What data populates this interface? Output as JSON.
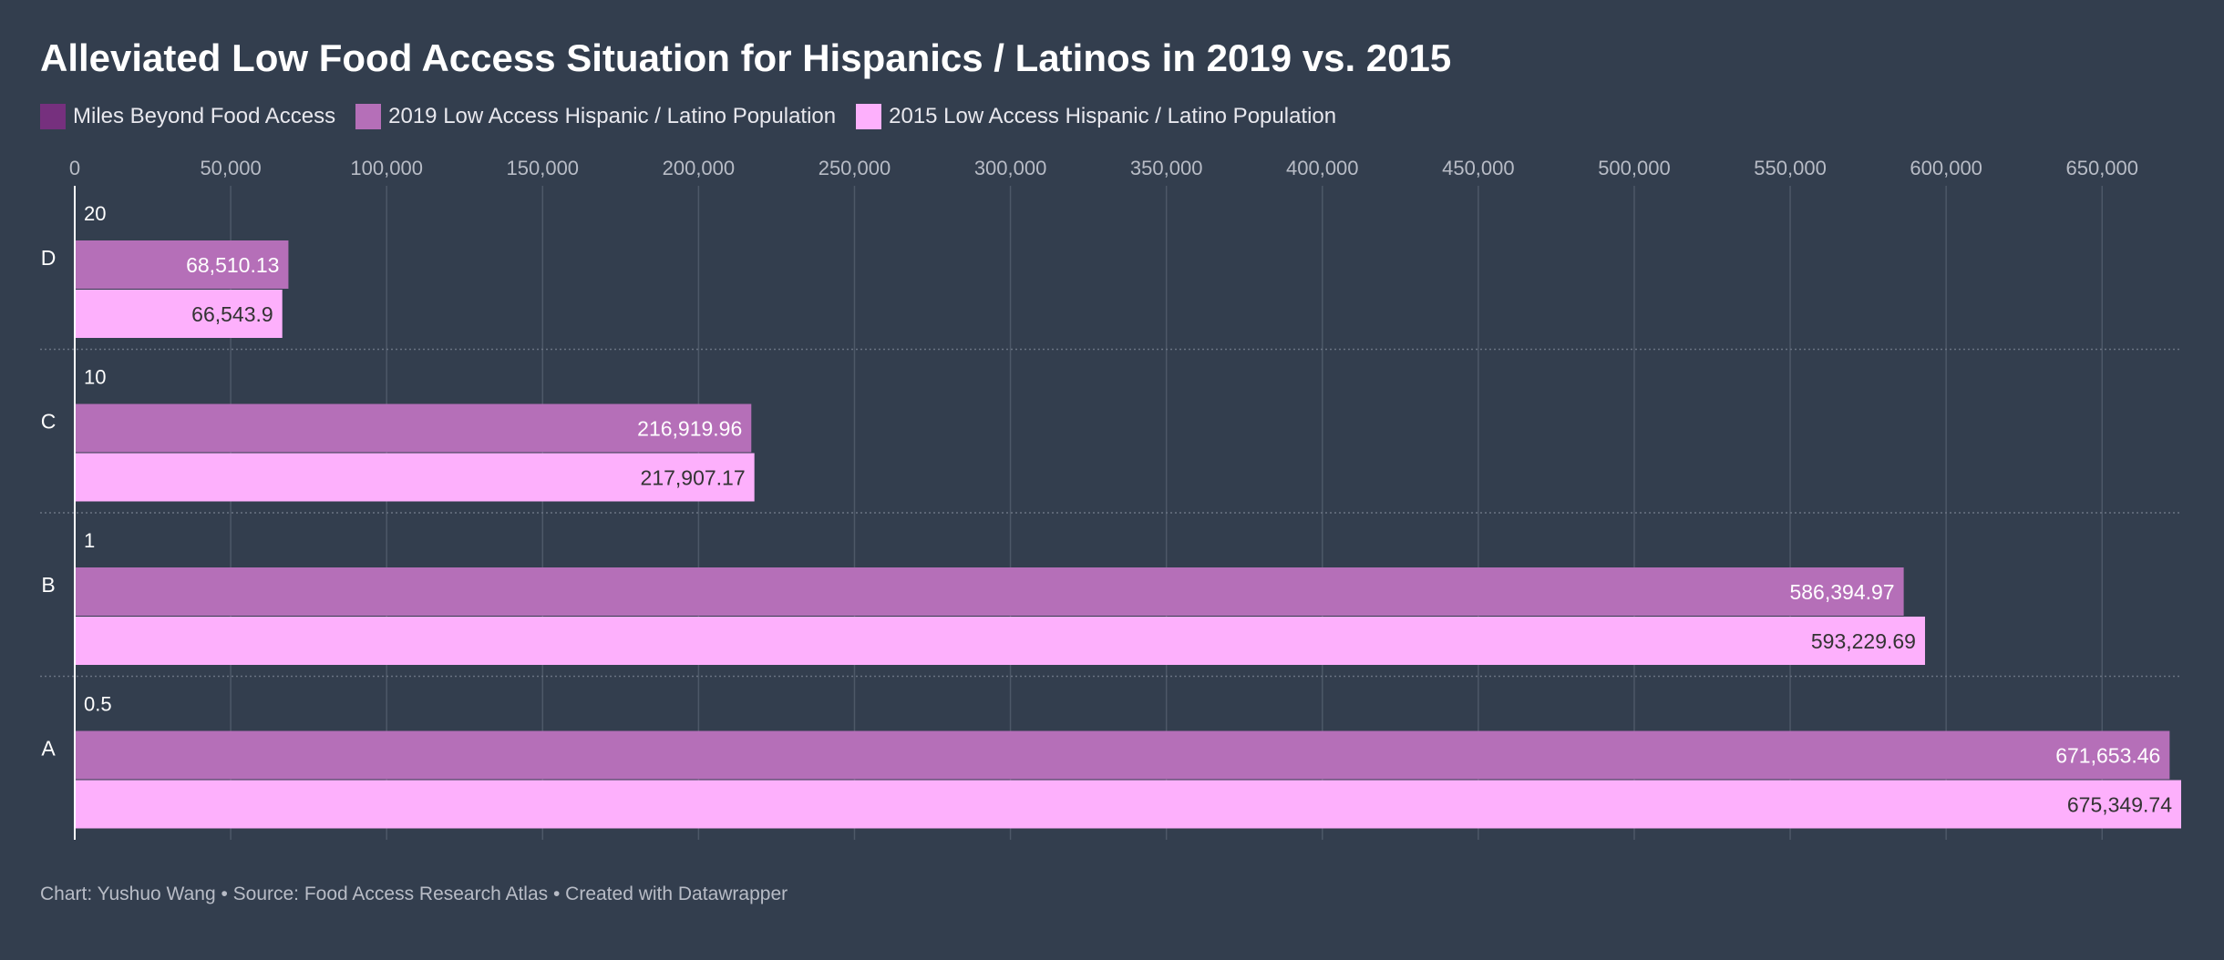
{
  "chart_data": {
    "type": "bar",
    "orientation": "horizontal",
    "title": "Alleviated Low Food Access Situation for Hispanics / Latinos in 2019 vs. 2015",
    "xlim": [
      0,
      675349.74
    ],
    "x_ticks": [
      0,
      50000,
      100000,
      150000,
      200000,
      250000,
      300000,
      350000,
      400000,
      450000,
      500000,
      550000,
      600000,
      650000
    ],
    "x_tick_labels": [
      "0",
      "50,000",
      "100,000",
      "150,000",
      "200,000",
      "250,000",
      "300,000",
      "350,000",
      "400,000",
      "450,000",
      "500,000",
      "550,000",
      "600,000",
      "650,000"
    ],
    "grid": true,
    "legend_position": "top-left",
    "categories": [
      "D",
      "C",
      "B",
      "A"
    ],
    "series": [
      {
        "name": "Miles Beyond Food Access",
        "color": "#76307e",
        "values": [
          20,
          10,
          1,
          0.5
        ],
        "labels": [
          "20",
          "10",
          "1",
          "0.5"
        ]
      },
      {
        "name": "2019 Low Access Hispanic / Latino Population",
        "color": "#b56fb8",
        "values": [
          68510.13,
          216919.96,
          586394.97,
          671653.46
        ],
        "labels": [
          "68,510.13",
          "216,919.96",
          "586,394.97",
          "671,653.46"
        ]
      },
      {
        "name": "2015 Low Access Hispanic / Latino Population",
        "color": "#fdb0fc",
        "values": [
          66543.9,
          217907.17,
          593229.69,
          675349.74
        ],
        "labels": [
          "66,543.9",
          "217,907.17",
          "593,229.69",
          "675,349.74"
        ]
      }
    ],
    "footer": "Chart: Yushuo Wang • Source: Food Access Research Atlas • Created with Datawrapper"
  }
}
